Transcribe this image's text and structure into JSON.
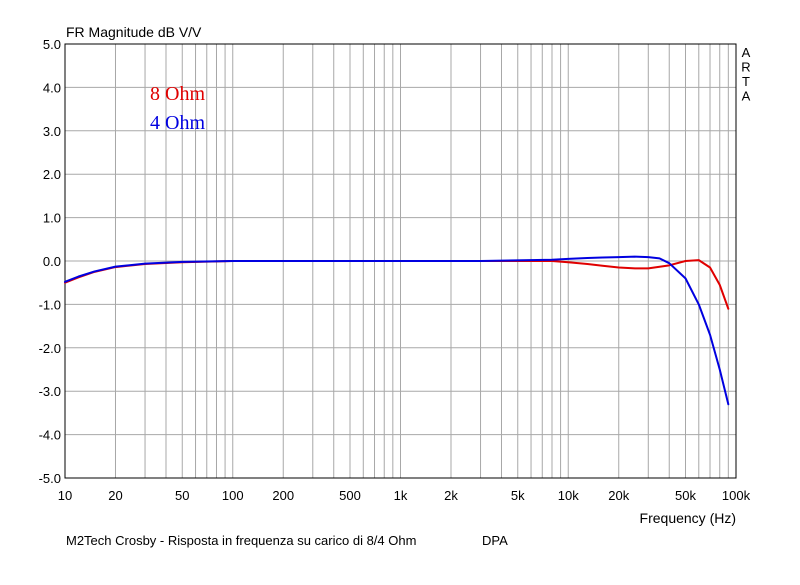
{
  "chart_data": {
    "type": "line",
    "title": "FR Magnitude dB V/V",
    "xlabel": "Frequency (Hz)",
    "ylabel": "",
    "xscale": "log",
    "xlim": [
      10,
      100000
    ],
    "ylim": [
      -5.0,
      5.0
    ],
    "grid": true,
    "legend_position": "top-left",
    "x_tick_labels": [
      "10",
      "20",
      "50",
      "100",
      "200",
      "500",
      "1k",
      "2k",
      "5k",
      "10k",
      "20k",
      "50k",
      "100k"
    ],
    "x_tick_values": [
      10,
      20,
      50,
      100,
      200,
      500,
      1000,
      2000,
      5000,
      10000,
      20000,
      50000,
      100000
    ],
    "y_tick_labels": [
      "5.0",
      "4.0",
      "3.0",
      "2.0",
      "1.0",
      "0.0",
      "-1.0",
      "-2.0",
      "-3.0",
      "-4.0",
      "-5.0"
    ],
    "y_tick_values": [
      5,
      4,
      3,
      2,
      1,
      0,
      -1,
      -2,
      -3,
      -4,
      -5
    ],
    "side_label": [
      "A",
      "R",
      "T",
      "A"
    ],
    "series": [
      {
        "name": "8 Ohm",
        "color": "#e00000",
        "x": [
          10,
          12,
          15,
          20,
          30,
          50,
          100,
          300,
          1000,
          3000,
          8000,
          10000,
          13000,
          16000,
          20000,
          25000,
          30000,
          40000,
          50000,
          60000,
          70000,
          80000,
          90000
        ],
        "y": [
          -0.5,
          -0.38,
          -0.25,
          -0.14,
          -0.07,
          -0.03,
          0.0,
          0.0,
          0.0,
          0.0,
          0.0,
          -0.03,
          -0.07,
          -0.11,
          -0.15,
          -0.17,
          -0.17,
          -0.1,
          0.0,
          0.02,
          -0.15,
          -0.55,
          -1.1
        ]
      },
      {
        "name": "4 Ohm",
        "color": "#0000e0",
        "x": [
          10,
          12,
          15,
          20,
          30,
          50,
          100,
          300,
          1000,
          3000,
          8000,
          10000,
          13000,
          16000,
          20000,
          25000,
          30000,
          35000,
          40000,
          50000,
          60000,
          70000,
          80000,
          90000
        ],
        "y": [
          -0.48,
          -0.36,
          -0.24,
          -0.13,
          -0.06,
          -0.02,
          0.0,
          0.0,
          0.0,
          0.0,
          0.03,
          0.05,
          0.07,
          0.08,
          0.09,
          0.1,
          0.09,
          0.06,
          -0.05,
          -0.4,
          -1.0,
          -1.7,
          -2.5,
          -3.3
        ]
      }
    ],
    "annotations": [
      {
        "text": "8 Ohm",
        "color": "#e00000"
      },
      {
        "text": "4 Ohm",
        "color": "#0000e0"
      }
    ]
  },
  "caption": {
    "title": "M2Tech Crosby - Risposta in frequenza su carico di 8/4 Ohm",
    "author": "DPA"
  }
}
